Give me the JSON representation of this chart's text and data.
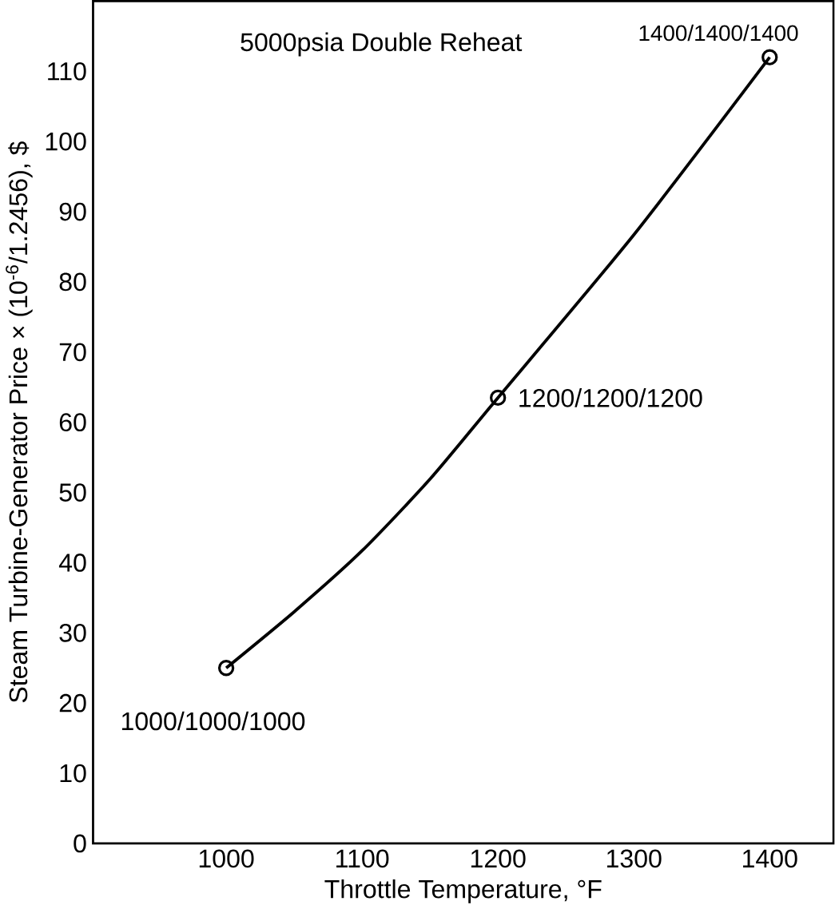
{
  "chart_data": {
    "type": "line",
    "xlabel": "Throttle Temperature, °F",
    "ylabel": "Steam Turbine-Generator Price × (10$^{-6}$/1.2456), $",
    "xlim": [
      902,
      1447
    ],
    "ylim": [
      0,
      120
    ],
    "xticks": [
      1000,
      1100,
      1200,
      1300,
      1400
    ],
    "yticks": [
      0,
      10,
      20,
      30,
      40,
      50,
      60,
      70,
      80,
      90,
      100,
      110
    ],
    "grid": false,
    "marker": "none",
    "line_style": "solid",
    "series": [
      {
        "color": "#000000",
        "x": [
          1000,
          1050,
          1100,
          1150,
          1200,
          1300,
          1400
        ],
        "values": [
          25,
          33,
          41.7,
          51.9,
          63.5,
          86.7,
          112
        ]
      },
      {
        "type": "scatter",
        "marker": "circle",
        "color": "#000000",
        "x": [
          1000,
          1200,
          1400
        ],
        "values": [
          25,
          63.5,
          112
        ]
      }
    ],
    "annotations": [
      "5000psia Double Reheat",
      {
        "text": "1000/1000/1000",
        "x": 1000,
        "y": 25
      },
      {
        "text": "1200/1200/1200",
        "x": 1200,
        "y": 63.5
      },
      {
        "text": "1400/1400/1400",
        "x": 1400,
        "y": 112
      }
    ]
  }
}
